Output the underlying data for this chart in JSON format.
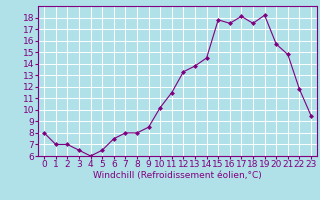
{
  "x": [
    0,
    1,
    2,
    3,
    4,
    5,
    6,
    7,
    8,
    9,
    10,
    11,
    12,
    13,
    14,
    15,
    16,
    17,
    18,
    19,
    20,
    21,
    22,
    23
  ],
  "y": [
    8.0,
    7.0,
    7.0,
    6.5,
    6.0,
    6.5,
    7.5,
    8.0,
    8.0,
    8.5,
    10.2,
    11.5,
    13.3,
    13.8,
    14.5,
    17.8,
    17.5,
    18.1,
    17.5,
    18.2,
    15.7,
    14.8,
    11.8,
    9.5
  ],
  "line_color": "#800080",
  "marker": "D",
  "marker_size": 2,
  "bg_color": "#b0e0e8",
  "grid_color": "#ffffff",
  "xlabel": "Windchill (Refroidissement éolien,°C)",
  "ylim": [
    6,
    19
  ],
  "xlim": [
    -0.5,
    23.5
  ],
  "yticks": [
    6,
    7,
    8,
    9,
    10,
    11,
    12,
    13,
    14,
    15,
    16,
    17,
    18
  ],
  "xticks": [
    0,
    1,
    2,
    3,
    4,
    5,
    6,
    7,
    8,
    9,
    10,
    11,
    12,
    13,
    14,
    15,
    16,
    17,
    18,
    19,
    20,
    21,
    22,
    23
  ],
  "xlabel_fontsize": 6.5,
  "tick_fontsize": 6.5,
  "spine_color": "#800080",
  "tick_color": "#800080"
}
